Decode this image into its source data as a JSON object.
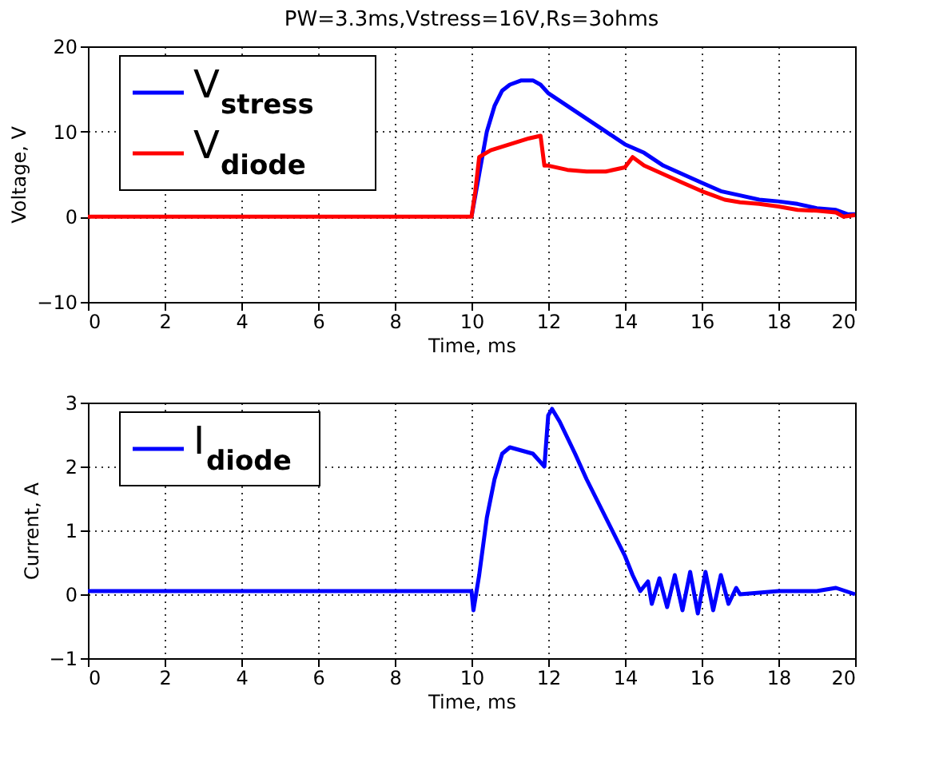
{
  "chart_data": [
    {
      "type": "line",
      "title": "PW=3.3ms,Vstress=16V,Rs=3ohms",
      "xlabel": "Time, ms",
      "ylabel": "Voltage, V",
      "xlim": [
        0,
        20
      ],
      "xticks": [
        0,
        2,
        4,
        6,
        8,
        10,
        12,
        14,
        16,
        18,
        20
      ],
      "ylim": [
        -10,
        20
      ],
      "yticks": [
        -10,
        0,
        10,
        20
      ],
      "grid": true,
      "legend": "top left",
      "line_style": "solid",
      "marker": "none",
      "series": [
        {
          "name": "V$_{stress}$",
          "color": "#0000ff",
          "x": [
            10,
            10.2,
            10.4,
            10.6,
            10.8,
            11,
            11.3,
            11.6,
            11.8,
            12,
            12.5,
            13,
            13.5,
            14,
            14.5,
            15,
            15.5,
            16,
            16.5,
            17,
            17.5,
            18,
            18.5,
            19,
            19.5,
            19.8,
            20
          ],
          "values": [
            0,
            5,
            10,
            13,
            14.8,
            15.5,
            16,
            16,
            15.5,
            14.5,
            13,
            11.5,
            10,
            8.5,
            7.5,
            6,
            5,
            4,
            3,
            2.5,
            2,
            1.8,
            1.5,
            1,
            0.8,
            0.3,
            0.3
          ]
        },
        {
          "name": "V$_{diode}$",
          "color": "#ff0000",
          "x": [
            0,
            2,
            4,
            6,
            8,
            9.9,
            10,
            10.1,
            10.2,
            10.5,
            11,
            11.5,
            11.8,
            11.9,
            12,
            12.5,
            13,
            13.5,
            14,
            14.2,
            14.5,
            15,
            15.5,
            16,
            16.3,
            16.6,
            17,
            17.5,
            18,
            18.5,
            19,
            19.5,
            19.7,
            20
          ],
          "values": [
            0,
            0,
            0,
            0,
            0,
            0,
            0,
            3,
            7,
            7.8,
            8.5,
            9.2,
            9.5,
            6,
            6,
            5.5,
            5.3,
            5.3,
            5.8,
            7,
            6,
            5,
            4,
            3,
            2.5,
            2,
            1.7,
            1.5,
            1.2,
            0.8,
            0.7,
            0.5,
            0,
            0.2
          ]
        }
      ]
    },
    {
      "type": "line",
      "xlabel": "Time, ms",
      "ylabel": "Current, A",
      "xlim": [
        0,
        20
      ],
      "xticks": [
        0,
        2,
        4,
        6,
        8,
        10,
        12,
        14,
        16,
        18,
        20
      ],
      "ylim": [
        -1,
        3
      ],
      "yticks": [
        -1,
        0,
        1,
        2,
        3
      ],
      "grid": true,
      "legend": "top left",
      "line_style": "solid",
      "marker": "none",
      "series": [
        {
          "name": "I$_{diode}$",
          "color": "#0000ff",
          "x": [
            0,
            2,
            4,
            6,
            8,
            10,
            10.05,
            10.2,
            10.4,
            10.6,
            10.8,
            11,
            11.3,
            11.6,
            11.9,
            12,
            12.1,
            12.3,
            12.7,
            13,
            13.5,
            14,
            14.2,
            14.4,
            14.6,
            14.7,
            14.9,
            15.1,
            15.3,
            15.5,
            15.7,
            15.9,
            16.1,
            16.3,
            16.5,
            16.7,
            16.9,
            17,
            18,
            19,
            19.5,
            20
          ],
          "values": [
            0.05,
            0.05,
            0.05,
            0.05,
            0.05,
            0.05,
            -0.25,
            0.3,
            1.2,
            1.8,
            2.2,
            2.3,
            2.25,
            2.2,
            2.0,
            2.8,
            2.9,
            2.7,
            2.2,
            1.8,
            1.2,
            0.6,
            0.3,
            0.05,
            0.2,
            -0.15,
            0.25,
            -0.2,
            0.3,
            -0.25,
            0.35,
            -0.3,
            0.35,
            -0.25,
            0.3,
            -0.15,
            0.1,
            0.0,
            0.05,
            0.05,
            0.1,
            0.0
          ]
        }
      ]
    }
  ]
}
